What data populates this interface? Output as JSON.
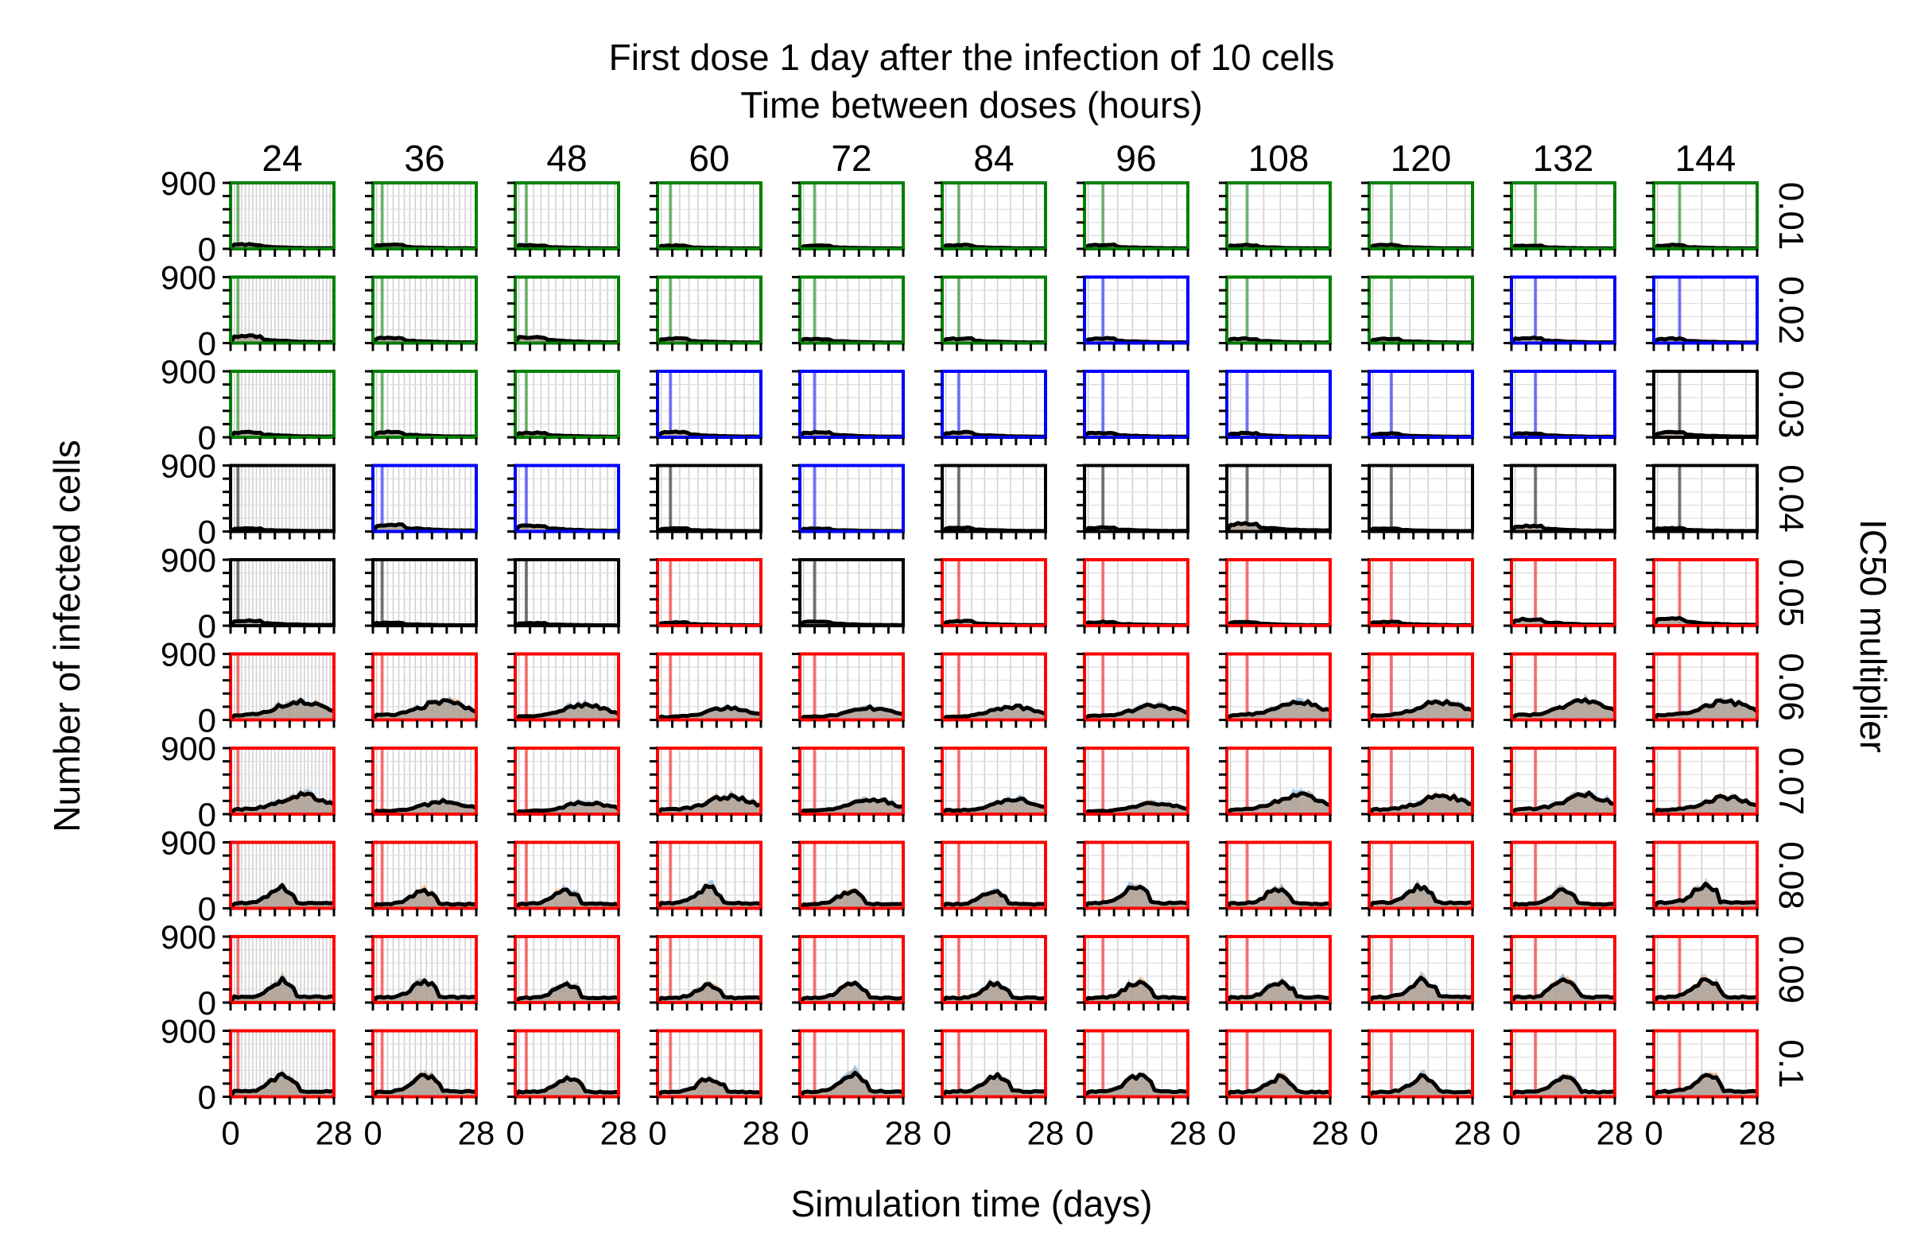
{
  "chart_data": {
    "type": "line",
    "title": "First dose 1 day after the infection of 10 cells",
    "column_header": "Time between doses (hours)",
    "xlabel": "Simulation time (days)",
    "ylabel": "Number of infected cells",
    "row_header": "IC50 multiplier",
    "x_tick_labels": [
      "0",
      "28"
    ],
    "y_tick_labels": [
      "0",
      "900"
    ],
    "xlim": [
      0,
      28
    ],
    "ylim": [
      0,
      900
    ],
    "columns": [
      "24",
      "36",
      "48",
      "60",
      "72",
      "84",
      "96",
      "108",
      "120",
      "132",
      "144"
    ],
    "column_values": [
      24,
      36,
      48,
      60,
      72,
      84,
      96,
      108,
      120,
      132,
      144
    ],
    "rows": [
      "0.01",
      "0.02",
      "0.03",
      "0.04",
      "0.05",
      "0.06",
      "0.07",
      "0.08",
      "0.09",
      "0.1"
    ],
    "first_dose_day": 1,
    "grid": true,
    "outcome_colors": {
      "green": "#008000",
      "blue": "#0000ff",
      "black": "#000000",
      "red": "#ff0000"
    },
    "band_colors": [
      "#6a9fd0",
      "#f0a868",
      "#a0a0a0"
    ],
    "mean_color": "#000000",
    "outcome_grid": [
      [
        "green",
        "green",
        "green",
        "green",
        "green",
        "green",
        "green",
        "green",
        "green",
        "green",
        "green"
      ],
      [
        "green",
        "green",
        "green",
        "green",
        "green",
        "green",
        "blue",
        "green",
        "green",
        "blue",
        "blue"
      ],
      [
        "green",
        "green",
        "green",
        "blue",
        "blue",
        "blue",
        "blue",
        "blue",
        "blue",
        "blue",
        "black"
      ],
      [
        "black",
        "blue",
        "blue",
        "black",
        "blue",
        "black",
        "black",
        "black",
        "black",
        "black",
        "black"
      ],
      [
        "black",
        "black",
        "black",
        "red",
        "black",
        "red",
        "red",
        "red",
        "red",
        "red",
        "red"
      ],
      [
        "red",
        "red",
        "red",
        "red",
        "red",
        "red",
        "red",
        "red",
        "red",
        "red",
        "red"
      ],
      [
        "red",
        "red",
        "red",
        "red",
        "red",
        "red",
        "red",
        "red",
        "red",
        "red",
        "red"
      ],
      [
        "red",
        "red",
        "red",
        "red",
        "red",
        "red",
        "red",
        "red",
        "red",
        "red",
        "red"
      ],
      [
        "red",
        "red",
        "red",
        "red",
        "red",
        "red",
        "red",
        "red",
        "red",
        "red",
        "red"
      ],
      [
        "red",
        "red",
        "red",
        "red",
        "red",
        "red",
        "red",
        "red",
        "red",
        "red",
        "red"
      ]
    ],
    "peak_infected": [
      [
        60,
        55,
        50,
        45,
        45,
        50,
        55,
        50,
        50,
        45,
        50
      ],
      [
        95,
        70,
        85,
        60,
        55,
        60,
        65,
        60,
        55,
        70,
        60
      ],
      [
        70,
        70,
        60,
        70,
        65,
        65,
        60,
        55,
        50,
        55,
        65
      ],
      [
        40,
        95,
        80,
        40,
        40,
        50,
        50,
        110,
        40,
        75,
        45
      ],
      [
        70,
        40,
        35,
        45,
        55,
        60,
        50,
        50,
        50,
        90,
        95
      ],
      [
        260,
        250,
        200,
        160,
        160,
        180,
        200,
        250,
        250,
        260,
        250
      ],
      [
        260,
        170,
        160,
        240,
        200,
        200,
        150,
        260,
        250,
        260,
        230
      ],
      [
        280,
        230,
        240,
        280,
        230,
        230,
        290,
        260,
        300,
        230,
        310
      ],
      [
        300,
        280,
        250,
        250,
        250,
        250,
        270,
        280,
        300,
        290,
        300
      ],
      [
        290,
        280,
        260,
        250,
        290,
        280,
        280,
        260,
        270,
        260,
        290
      ]
    ]
  }
}
